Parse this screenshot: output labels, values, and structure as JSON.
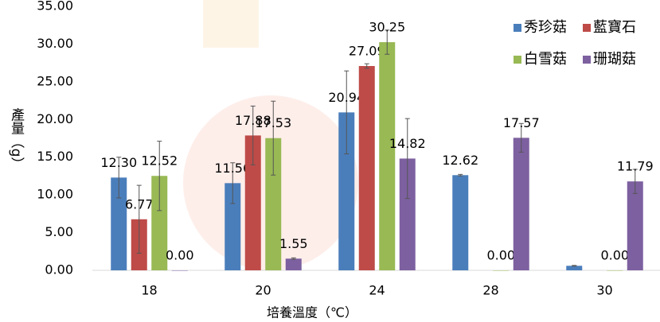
{
  "chart_data": {
    "type": "bar",
    "y_label": "產量（g）",
    "x_label": "培養溫度（℃）",
    "categories": [
      "18",
      "20",
      "24",
      "28",
      "30"
    ],
    "series": [
      {
        "name": "秀珍菇",
        "color": "#4a7ebb",
        "values": [
          12.3,
          11.56,
          20.94,
          12.62,
          0.6
        ],
        "value_labels": [
          "12.30",
          "11.56",
          "20.94",
          "12.62",
          null
        ],
        "errors": [
          2.7,
          2.7,
          5.5,
          0.1,
          0.05
        ]
      },
      {
        "name": "藍寶石",
        "color": "#be4b48",
        "values": [
          6.77,
          17.88,
          27.09,
          null,
          null
        ],
        "value_labels": [
          "6.77",
          "17.88",
          "27.09",
          null,
          null
        ],
        "errors": [
          4.5,
          3.9,
          0.3,
          null,
          null
        ]
      },
      {
        "name": "白雪菇",
        "color": "#98b954",
        "values": [
          12.52,
          17.53,
          30.25,
          0,
          0
        ],
        "value_labels": [
          "12.52",
          "17.53",
          "30.25",
          "0.00",
          "0.00"
        ],
        "errors": [
          4.6,
          4.9,
          1.6,
          null,
          null
        ]
      },
      {
        "name": "珊瑚菇",
        "color": "#7d60a0",
        "values": [
          0,
          1.55,
          14.82,
          17.57,
          11.79
        ],
        "value_labels": [
          "0.00",
          "1.55",
          "14.82",
          "17.57",
          "11.79"
        ],
        "errors": [
          null,
          0.1,
          5.3,
          1.9,
          1.6
        ]
      }
    ],
    "ylim": [
      0,
      35
    ],
    "yticks": [
      {
        "value": 0,
        "label": "0.00"
      },
      {
        "value": 5,
        "label": "5.00"
      },
      {
        "value": 10,
        "label": "10.00"
      },
      {
        "value": 15,
        "label": "15.00"
      },
      {
        "value": 20,
        "label": "20.00"
      },
      {
        "value": 25,
        "label": "25.00"
      },
      {
        "value": 30,
        "label": "30.00"
      },
      {
        "value": 35,
        "label": "35.00"
      }
    ],
    "legend": "top-right"
  }
}
